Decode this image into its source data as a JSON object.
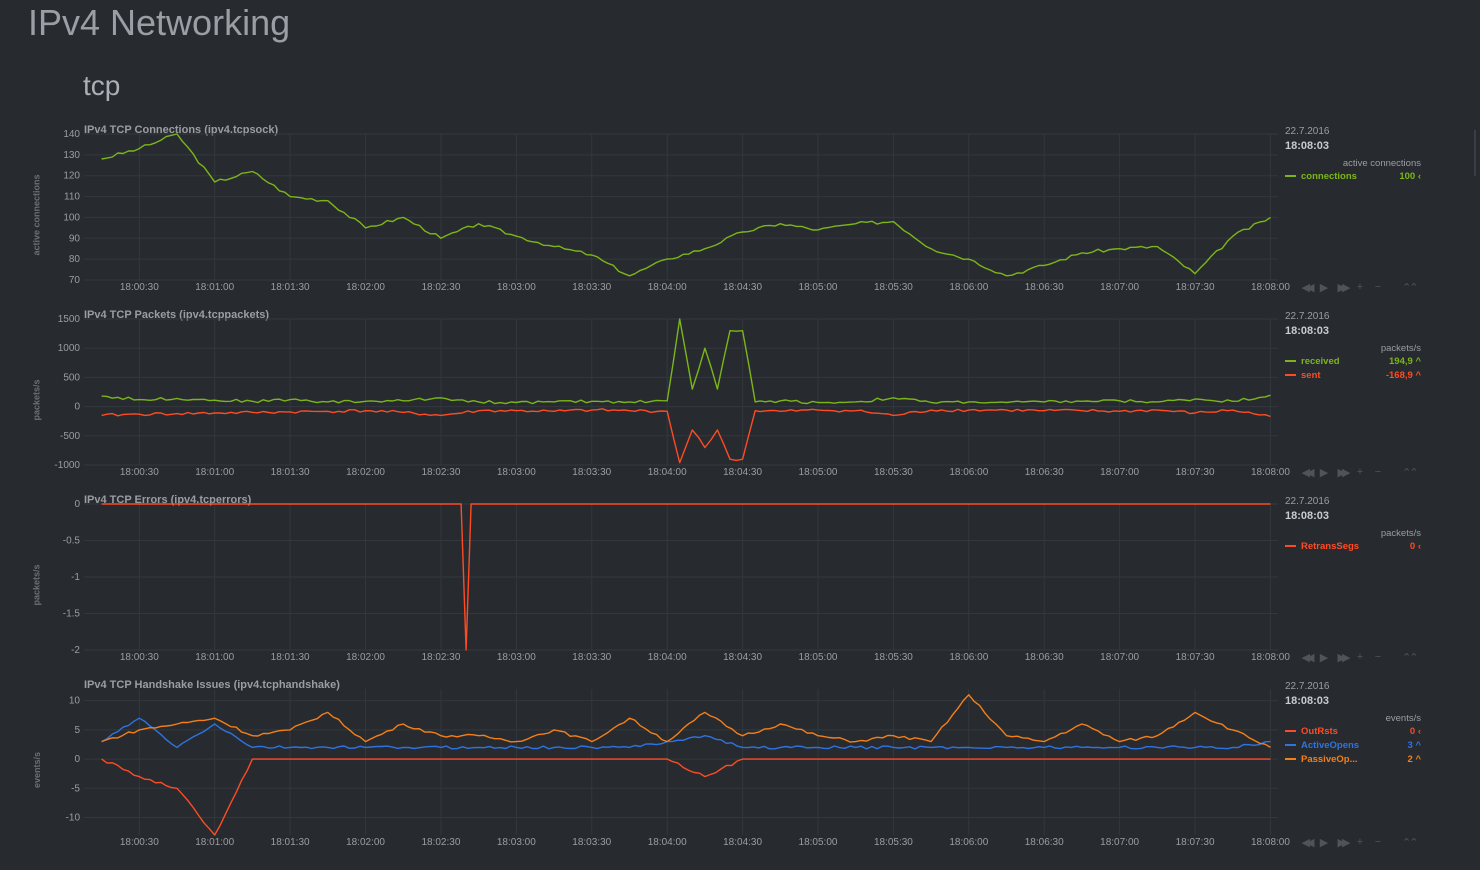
{
  "page": {
    "title": "IPv4 Networking",
    "section": "tcp"
  },
  "colors": {
    "green": "#7cb518",
    "red": "#ff4b23",
    "blue": "#2f73e0",
    "orange": "#f57f17",
    "grid": "#33383e"
  },
  "icons": [
    "rewind-icon",
    "play-icon",
    "fast-forward-icon",
    "zoom-in-icon",
    "zoom-out-icon",
    "resize-icon"
  ],
  "charts": [
    {
      "title": "IPv4 TCP Connections (ipv4.tcpsock)",
      "ylabel": "active connections",
      "date": "22.7.2016",
      "time": "18:08:03",
      "units": "active connections",
      "yticks": [
        "140",
        "130",
        "120",
        "110",
        "100",
        "90",
        "80",
        "70"
      ],
      "xticks": [
        "18:00:30",
        "18:01:00",
        "18:01:30",
        "18:02:00",
        "18:02:30",
        "18:03:00",
        "18:03:30",
        "18:04:00",
        "18:04:30",
        "18:05:00",
        "18:05:30",
        "18:06:00",
        "18:06:30",
        "18:07:00",
        "18:07:30",
        "18:08:00"
      ],
      "legend": [
        {
          "name": "connections",
          "value": "100",
          "arrow": "‹",
          "color": "#7cb518"
        }
      ]
    },
    {
      "title": "IPv4 TCP Packets (ipv4.tcppackets)",
      "ylabel": "packets/s",
      "date": "22.7.2016",
      "time": "18:08:03",
      "units": "packets/s",
      "yticks": [
        "1500",
        "1000",
        "500",
        "0",
        "-500",
        "-1000"
      ],
      "xticks": [
        "18:00:30",
        "18:01:00",
        "18:01:30",
        "18:02:00",
        "18:02:30",
        "18:03:00",
        "18:03:30",
        "18:04:00",
        "18:04:30",
        "18:05:00",
        "18:05:30",
        "18:06:00",
        "18:06:30",
        "18:07:00",
        "18:07:30",
        "18:08:00"
      ],
      "legend": [
        {
          "name": "received",
          "value": "194,9",
          "arrow": "^",
          "color": "#7cb518"
        },
        {
          "name": "sent",
          "value": "-168,9",
          "arrow": "^",
          "color": "#ff4b23"
        }
      ]
    },
    {
      "title": "IPv4 TCP Errors (ipv4.tcperrors)",
      "ylabel": "packets/s",
      "date": "22.7.2016",
      "time": "18:08:03",
      "units": "packets/s",
      "yticks": [
        "0",
        "-0.5",
        "-1",
        "-1.5",
        "-2"
      ],
      "xticks": [
        "18:00:30",
        "18:01:00",
        "18:01:30",
        "18:02:00",
        "18:02:30",
        "18:03:00",
        "18:03:30",
        "18:04:00",
        "18:04:30",
        "18:05:00",
        "18:05:30",
        "18:06:00",
        "18:06:30",
        "18:07:00",
        "18:07:30",
        "18:08:00"
      ],
      "legend": [
        {
          "name": "RetransSegs",
          "value": "0",
          "arrow": "‹",
          "color": "#ff4b23"
        }
      ]
    },
    {
      "title": "IPv4 TCP Handshake Issues (ipv4.tcphandshake)",
      "ylabel": "events/s",
      "date": "22.7.2016",
      "time": "18:08:03",
      "units": "events/s",
      "yticks": [
        "10",
        "5",
        "0",
        "-5",
        "-10"
      ],
      "xticks": [
        "18:00:30",
        "18:01:00",
        "18:01:30",
        "18:02:00",
        "18:02:30",
        "18:03:00",
        "18:03:30",
        "18:04:00",
        "18:04:30",
        "18:05:00",
        "18:05:30",
        "18:06:00",
        "18:06:30",
        "18:07:00",
        "18:07:30",
        "18:08:00"
      ],
      "legend": [
        {
          "name": "OutRsts",
          "value": "0",
          "arrow": "‹",
          "color": "#ff4b23"
        },
        {
          "name": "ActiveOpens",
          "value": "3",
          "arrow": "^",
          "color": "#2f73e0"
        },
        {
          "name": "PassiveOp...",
          "value": "2",
          "arrow": "^",
          "color": "#f57f17"
        }
      ]
    }
  ],
  "chart_data": [
    {
      "type": "line",
      "title": "IPv4 TCP Connections (ipv4.tcpsock)",
      "ylabel": "active connections",
      "ylim": [
        70,
        140
      ],
      "x": [
        "18:00:15",
        "18:00:30",
        "18:00:45",
        "18:01:00",
        "18:01:15",
        "18:01:30",
        "18:01:45",
        "18:02:00",
        "18:02:15",
        "18:02:30",
        "18:02:45",
        "18:03:00",
        "18:03:15",
        "18:03:30",
        "18:03:45",
        "18:04:00",
        "18:04:15",
        "18:04:30",
        "18:04:45",
        "18:05:00",
        "18:05:15",
        "18:05:30",
        "18:05:45",
        "18:06:00",
        "18:06:15",
        "18:06:30",
        "18:06:45",
        "18:07:00",
        "18:07:15",
        "18:07:30",
        "18:07:45",
        "18:08:00"
      ],
      "series": [
        {
          "name": "connections",
          "values": [
            128,
            133,
            140,
            117,
            122,
            110,
            108,
            95,
            100,
            90,
            97,
            91,
            86,
            82,
            72,
            80,
            85,
            93,
            97,
            94,
            97,
            98,
            85,
            80,
            72,
            77,
            83,
            85,
            86,
            73,
            91,
            100
          ]
        }
      ]
    },
    {
      "type": "line",
      "title": "IPv4 TCP Packets (ipv4.tcppackets)",
      "ylabel": "packets/s",
      "ylim": [
        -1000,
        1500
      ],
      "x": [
        "18:00:15",
        "18:00:30",
        "18:00:45",
        "18:01:00",
        "18:01:15",
        "18:01:30",
        "18:01:45",
        "18:02:00",
        "18:02:15",
        "18:02:30",
        "18:02:45",
        "18:03:00",
        "18:03:15",
        "18:03:30",
        "18:03:45",
        "18:04:00",
        "18:04:05",
        "18:04:10",
        "18:04:15",
        "18:04:20",
        "18:04:25",
        "18:04:30",
        "18:04:35",
        "18:04:45",
        "18:05:00",
        "18:05:15",
        "18:05:30",
        "18:05:45",
        "18:06:00",
        "18:06:15",
        "18:06:30",
        "18:06:45",
        "18:07:00",
        "18:07:15",
        "18:07:30",
        "18:07:45",
        "18:08:00"
      ],
      "series": [
        {
          "name": "received",
          "values": [
            180,
            120,
            140,
            110,
            90,
            120,
            80,
            90,
            100,
            150,
            80,
            70,
            80,
            90,
            80,
            100,
            1500,
            300,
            1000,
            300,
            1300,
            1300,
            80,
            100,
            70,
            80,
            150,
            70,
            80,
            70,
            80,
            90,
            100,
            80,
            130,
            90,
            195
          ]
        },
        {
          "name": "sent",
          "values": [
            -150,
            -130,
            -120,
            -110,
            -100,
            -90,
            -80,
            -70,
            -100,
            -150,
            -70,
            -70,
            -80,
            -60,
            -70,
            -80,
            -960,
            -400,
            -700,
            -400,
            -900,
            -900,
            -70,
            -80,
            -60,
            -70,
            -150,
            -60,
            -60,
            -60,
            -70,
            -70,
            -80,
            -60,
            -110,
            -60,
            -169
          ]
        }
      ]
    },
    {
      "type": "line",
      "title": "IPv4 TCP Errors (ipv4.tcperrors)",
      "ylabel": "packets/s",
      "ylim": [
        -2,
        0
      ],
      "x": [
        "18:00:15",
        "18:02:30",
        "18:02:38",
        "18:02:40",
        "18:02:42",
        "18:03:00",
        "18:08:00"
      ],
      "series": [
        {
          "name": "RetransSegs",
          "values": [
            0,
            0,
            0,
            -2,
            0,
            0,
            0
          ]
        }
      ]
    },
    {
      "type": "line",
      "title": "IPv4 TCP Handshake Issues (ipv4.tcphandshake)",
      "ylabel": "events/s",
      "ylim": [
        -13,
        12
      ],
      "x": [
        "18:00:15",
        "18:00:30",
        "18:00:45",
        "18:01:00",
        "18:01:15",
        "18:01:30",
        "18:01:45",
        "18:02:00",
        "18:02:15",
        "18:02:30",
        "18:02:45",
        "18:03:00",
        "18:03:15",
        "18:03:30",
        "18:03:45",
        "18:04:00",
        "18:04:15",
        "18:04:30",
        "18:04:45",
        "18:05:00",
        "18:05:15",
        "18:05:30",
        "18:05:45",
        "18:06:00",
        "18:06:15",
        "18:06:30",
        "18:06:45",
        "18:07:00",
        "18:07:15",
        "18:07:30",
        "18:07:45",
        "18:08:00"
      ],
      "series": [
        {
          "name": "OutRsts",
          "values": [
            0,
            -3,
            -5,
            -13,
            0,
            0,
            0,
            0,
            0,
            0,
            0,
            0,
            0,
            0,
            0,
            0,
            -3,
            0,
            0,
            0,
            0,
            0,
            0,
            0,
            0,
            0,
            0,
            0,
            0,
            0,
            0,
            0
          ]
        },
        {
          "name": "ActiveOpens",
          "values": [
            3,
            7,
            2,
            6,
            2,
            2,
            2,
            2,
            2,
            2,
            2,
            2,
            2,
            2,
            2,
            3,
            4,
            2,
            2,
            2,
            2,
            2,
            2,
            2,
            2,
            2,
            2,
            2,
            2,
            2,
            2,
            3
          ]
        },
        {
          "name": "PassiveOp...",
          "values": [
            3,
            5,
            6,
            7,
            4,
            5,
            8,
            3,
            6,
            4,
            4,
            3,
            5,
            3,
            7,
            3,
            8,
            4,
            6,
            4,
            3,
            4,
            3,
            11,
            4,
            3,
            6,
            3,
            4,
            8,
            5,
            2
          ]
        }
      ]
    }
  ]
}
